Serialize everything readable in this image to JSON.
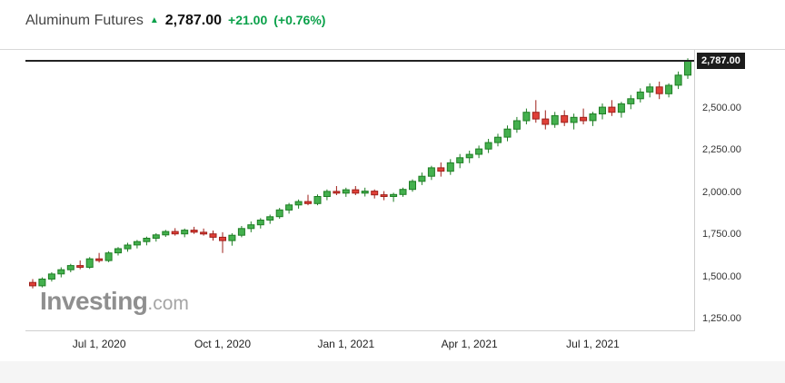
{
  "header": {
    "title": "Aluminum Futures",
    "arrow_icon": "▲",
    "price": "2,787.00",
    "change": "+21.00",
    "change_pct": "(+0.76%)"
  },
  "watermark": {
    "name": "Investing",
    "suffix": ".com"
  },
  "price_axis": {
    "current_badge": "2,787.00",
    "ticks": [
      "2,500.00",
      "2,250.00",
      "2,000.00",
      "1,750.00",
      "1,500.00",
      "1,250.00"
    ]
  },
  "chart_data": {
    "type": "candlestick",
    "title": "Aluminum Futures",
    "interval": "weekly",
    "ylim": [
      1180,
      2850
    ],
    "current_price": 2787,
    "y_ticks": [
      2500,
      2250,
      2000,
      1750,
      1500,
      1250
    ],
    "x_ticks": [
      {
        "label": "Jul 1, 2020",
        "index": 7
      },
      {
        "label": "Oct 1, 2020",
        "index": 20
      },
      {
        "label": "Jan 1, 2021",
        "index": 33
      },
      {
        "label": "Apr 1, 2021",
        "index": 46
      },
      {
        "label": "Jul 1, 2021",
        "index": 59
      }
    ],
    "up_color": "#44b04e",
    "up_stroke": "#1e7e24",
    "down_color": "#e04038",
    "down_stroke": "#9e1f1a",
    "line_color": "#232323",
    "candles": [
      [
        1470,
        1490,
        1435,
        1450
      ],
      [
        1450,
        1500,
        1440,
        1490
      ],
      [
        1490,
        1530,
        1475,
        1520
      ],
      [
        1520,
        1560,
        1500,
        1545
      ],
      [
        1545,
        1580,
        1530,
        1570
      ],
      [
        1570,
        1600,
        1548,
        1560
      ],
      [
        1560,
        1620,
        1550,
        1610
      ],
      [
        1610,
        1645,
        1588,
        1600
      ],
      [
        1600,
        1655,
        1590,
        1645
      ],
      [
        1645,
        1680,
        1630,
        1670
      ],
      [
        1670,
        1705,
        1652,
        1692
      ],
      [
        1692,
        1722,
        1672,
        1712
      ],
      [
        1712,
        1742,
        1690,
        1732
      ],
      [
        1732,
        1762,
        1712,
        1752
      ],
      [
        1752,
        1782,
        1740,
        1772
      ],
      [
        1772,
        1792,
        1748,
        1758
      ],
      [
        1758,
        1790,
        1738,
        1780
      ],
      [
        1780,
        1800,
        1758,
        1768
      ],
      [
        1768,
        1790,
        1748,
        1758
      ],
      [
        1758,
        1778,
        1718,
        1738
      ],
      [
        1738,
        1768,
        1645,
        1718
      ],
      [
        1718,
        1762,
        1688,
        1750
      ],
      [
        1750,
        1805,
        1738,
        1790
      ],
      [
        1790,
        1832,
        1768,
        1812
      ],
      [
        1812,
        1852,
        1790,
        1840
      ],
      [
        1840,
        1872,
        1818,
        1860
      ],
      [
        1860,
        1912,
        1848,
        1900
      ],
      [
        1900,
        1942,
        1878,
        1930
      ],
      [
        1930,
        1962,
        1908,
        1950
      ],
      [
        1950,
        1990,
        1928,
        1938
      ],
      [
        1938,
        1992,
        1928,
        1980
      ],
      [
        1980,
        2022,
        1958,
        2010
      ],
      [
        2010,
        2042,
        1988,
        2000
      ],
      [
        2000,
        2032,
        1978,
        2020
      ],
      [
        2020,
        2042,
        1988,
        2000
      ],
      [
        2000,
        2032,
        1980,
        2012
      ],
      [
        2012,
        2022,
        1968,
        1990
      ],
      [
        1990,
        2012,
        1958,
        1980
      ],
      [
        1980,
        2002,
        1948,
        1992
      ],
      [
        1992,
        2032,
        1978,
        2022
      ],
      [
        2022,
        2082,
        2008,
        2070
      ],
      [
        2070,
        2122,
        2048,
        2100
      ],
      [
        2100,
        2162,
        2078,
        2150
      ],
      [
        2150,
        2182,
        2098,
        2130
      ],
      [
        2130,
        2202,
        2108,
        2180
      ],
      [
        2180,
        2232,
        2148,
        2210
      ],
      [
        2210,
        2252,
        2178,
        2230
      ],
      [
        2230,
        2282,
        2208,
        2262
      ],
      [
        2262,
        2322,
        2238,
        2300
      ],
      [
        2300,
        2352,
        2278,
        2332
      ],
      [
        2332,
        2402,
        2308,
        2380
      ],
      [
        2380,
        2452,
        2358,
        2430
      ],
      [
        2430,
        2502,
        2408,
        2480
      ],
      [
        2480,
        2552,
        2418,
        2440
      ],
      [
        2440,
        2492,
        2378,
        2408
      ],
      [
        2408,
        2482,
        2388,
        2460
      ],
      [
        2460,
        2492,
        2398,
        2420
      ],
      [
        2420,
        2472,
        2378,
        2450
      ],
      [
        2450,
        2502,
        2408,
        2430
      ],
      [
        2430,
        2482,
        2398,
        2470
      ],
      [
        2470,
        2532,
        2438,
        2510
      ],
      [
        2510,
        2552,
        2458,
        2480
      ],
      [
        2480,
        2542,
        2448,
        2530
      ],
      [
        2530,
        2582,
        2498,
        2560
      ],
      [
        2560,
        2622,
        2538,
        2600
      ],
      [
        2600,
        2652,
        2568,
        2630
      ],
      [
        2630,
        2662,
        2558,
        2590
      ],
      [
        2590,
        2652,
        2568,
        2640
      ],
      [
        2640,
        2722,
        2618,
        2700
      ],
      [
        2700,
        2800,
        2678,
        2787
      ]
    ]
  }
}
